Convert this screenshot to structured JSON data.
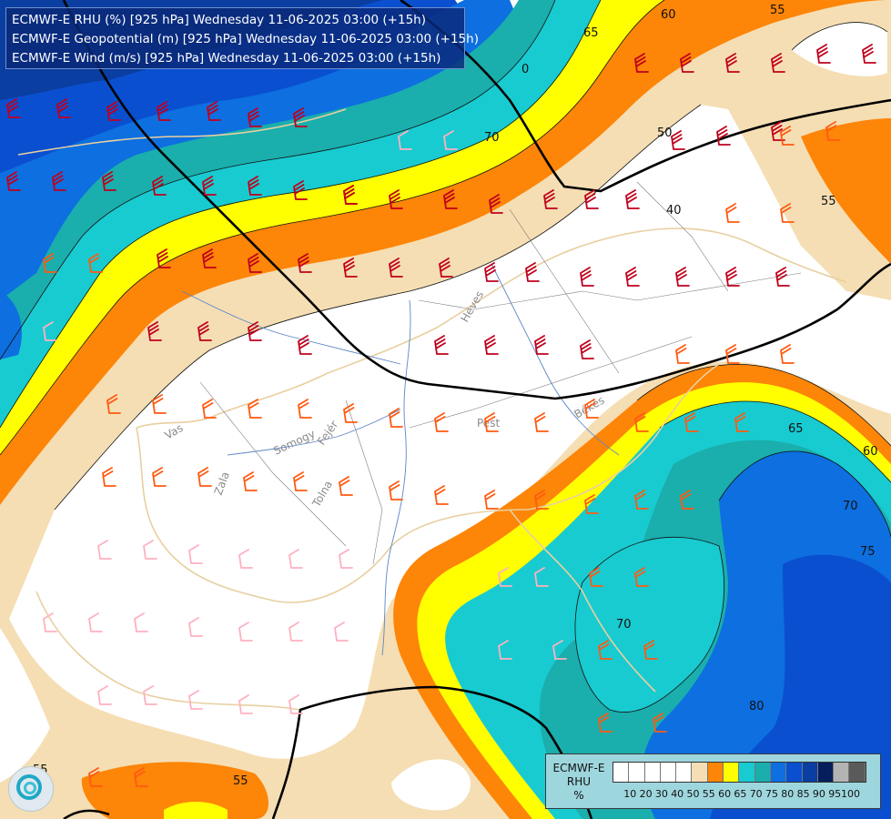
{
  "header": {
    "lines": [
      "ECMWF-E RHU (%) [925 hPa] Wednesday 11-06-2025 03:00 (+15h)",
      "ECMWF-E Geopotential (m) [925 hPa] Wednesday 11-06-2025 03:00 (+15h)",
      "ECMWF-E Wind (m/s) [925 hPa] Wednesday 11-06-2025 03:00 (+15h)"
    ]
  },
  "legend": {
    "title_line1": "ECMWF-E",
    "title_line2": "RHU",
    "unit": "%",
    "swatch_colors": [
      "#ffffff",
      "#ffffff",
      "#ffffff",
      "#ffffff",
      "#ffffff",
      "#f5deb3",
      "#fd8508",
      "#ffff00",
      "#18cbd0",
      "#1aaead",
      "#0d6fe0",
      "#0a4fd0",
      "#0a3ea0",
      "#061e5c",
      "#b3b3b3",
      "#5a5a5a"
    ],
    "tick_labels": [
      "10",
      "20",
      "30",
      "40",
      "50",
      "55",
      "60",
      "65",
      "70",
      "75",
      "80",
      "85",
      "90",
      "95",
      "100"
    ]
  },
  "contour_labels": [
    "60",
    "65",
    "55",
    "70",
    "50",
    "40",
    "55",
    "65",
    "60",
    "70",
    "75",
    "70",
    "80",
    "55",
    "0",
    "55"
  ],
  "place_labels": [
    "Heves",
    "Pest",
    "Békés",
    "Vas",
    "Somogy",
    "Fejér",
    "Zala",
    "Tolna"
  ],
  "colors": {
    "rh_lt50": "#ffffff",
    "rh_55": "#f5deb3",
    "rh_60": "#fd8508",
    "rh_65": "#ffff00",
    "rh_70": "#18cbd0",
    "rh_75": "#1aaead",
    "rh_80": "#0d6fe0",
    "rh_85": "#0a4fd0",
    "rh_90": "#0a3ea0",
    "rh_95": "#061e5c",
    "barb_dark": "#c0001c",
    "barb_orange": "#ff5a10",
    "barb_pink": "#ffb0c0"
  }
}
